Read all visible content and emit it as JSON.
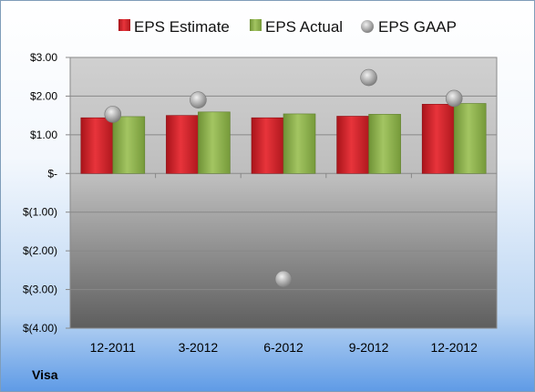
{
  "chart_data": {
    "type": "bar",
    "categories": [
      "12-2011",
      "3-2012",
      "6-2012",
      "9-2012",
      "12-2012"
    ],
    "series": [
      {
        "name": "EPS Estimate",
        "kind": "bar",
        "color": "#cc2127",
        "values": [
          1.44,
          1.5,
          1.44,
          1.48,
          1.79
        ]
      },
      {
        "name": "EPS Actual",
        "kind": "bar",
        "color": "#8cb04a",
        "values": [
          1.47,
          1.59,
          1.54,
          1.53,
          1.81
        ]
      },
      {
        "name": "EPS GAAP",
        "kind": "scatter",
        "color": "#a9a9a9",
        "values": [
          1.53,
          1.9,
          -2.73,
          2.48,
          1.94
        ]
      }
    ],
    "yticks": [
      "$3.00",
      "$2.00",
      "$1.00",
      "$-",
      "$(1.00)",
      "$(2.00)",
      "$(3.00)",
      "$(4.00)"
    ],
    "ylim": [
      -4,
      3
    ],
    "legend_position": "top"
  },
  "company": "Visa"
}
